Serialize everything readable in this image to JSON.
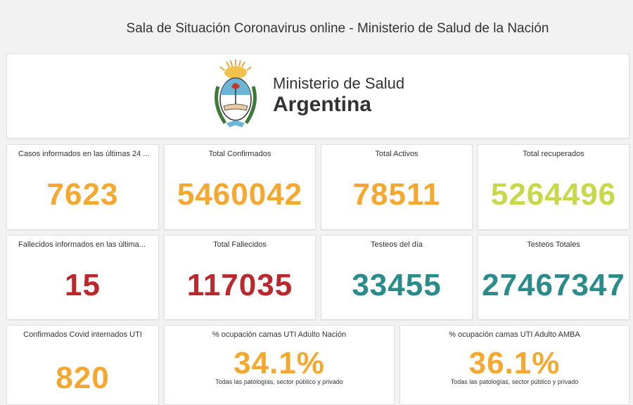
{
  "page_title": "Sala de Situación Coronavirus online - Ministerio de Salud de la Nación",
  "logo": {
    "line1": "Ministerio de Salud",
    "line2": "Argentina",
    "emblem": "argentina-coat-of-arms-icon"
  },
  "colors": {
    "orange": "#f4a830",
    "lime": "#c7d84a",
    "red": "#b8282c",
    "teal": "#2b8a8a",
    "emblem_blue": "#6bb5d6"
  },
  "row1": [
    {
      "label": "Casos informados en las últimas 24 ...",
      "value": "7623",
      "color": "orange"
    },
    {
      "label": "Total Confirmados",
      "value": "5460042",
      "color": "orange"
    },
    {
      "label": "Total Activos",
      "value": "78511",
      "color": "orange"
    },
    {
      "label": "Total recuperados",
      "value": "5264496",
      "color": "lime"
    }
  ],
  "row2": [
    {
      "label": "Fallecidos informados en las última...",
      "value": "15",
      "color": "red"
    },
    {
      "label": "Total Fallecidos",
      "value": "117035",
      "color": "red"
    },
    {
      "label": "Testeos del día",
      "value": "33455",
      "color": "teal"
    },
    {
      "label": "Testeos Totales",
      "value": "27467347",
      "color": "teal"
    }
  ],
  "row3": [
    {
      "label": "Confirmados Covid internados UTI",
      "value": "820",
      "color": "orange"
    },
    {
      "label": "% ocupación camas UTI Adulto Nación",
      "value": "34.1%",
      "sub": "Todas las patologías, sector público y privado",
      "color": "orange"
    },
    {
      "label": "% ocupación camas UTI Adulto AMBA",
      "value": "36.1%",
      "sub": "Todas las patologías, sector público y privado",
      "color": "orange"
    }
  ]
}
